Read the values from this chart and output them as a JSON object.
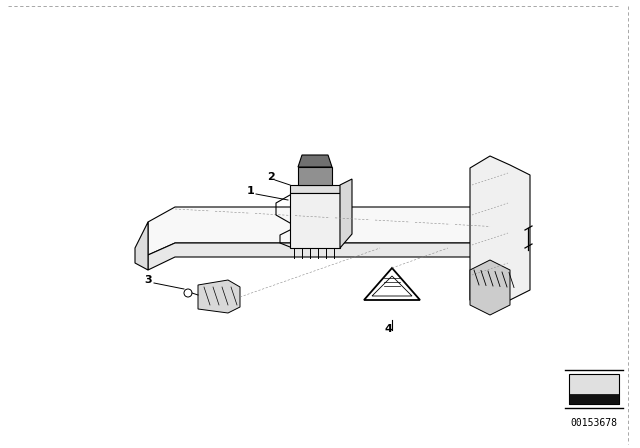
{
  "bg_color": "#ffffff",
  "line_color": "#000000",
  "label_1": "1",
  "label_2": "2",
  "label_3": "3",
  "label_4": "4",
  "diagram_code": "00153678",
  "label_fontsize": 8,
  "code_fontsize": 7,
  "fig_width": 6.4,
  "fig_height": 4.48,
  "dpi": 100
}
